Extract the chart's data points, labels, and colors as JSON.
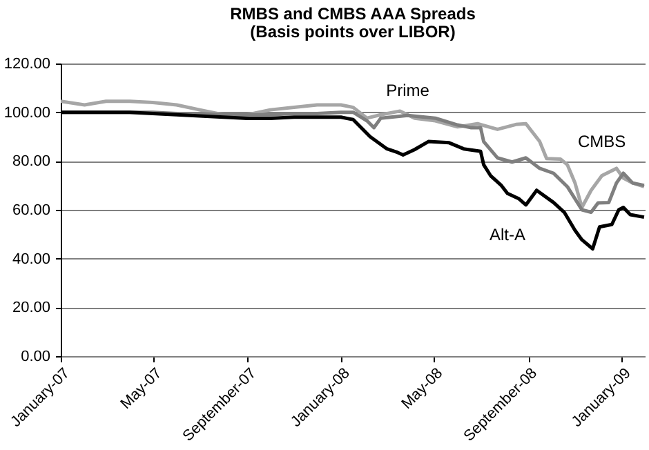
{
  "chart_data": {
    "type": "line",
    "title": "RMBS and CMBS AAA Spreads",
    "subtitle": "(Basis points over LIBOR)",
    "xlim": [
      "2007-01-01",
      "2009-01-31"
    ],
    "xticks": [
      {
        "value": "2007-01-01",
        "label": "January-07"
      },
      {
        "value": "2007-05-01",
        "label": "May-07"
      },
      {
        "value": "2007-09-01",
        "label": "September-07"
      },
      {
        "value": "2008-01-01",
        "label": "January-08"
      },
      {
        "value": "2008-05-01",
        "label": "May-08"
      },
      {
        "value": "2008-09-01",
        "label": "September-08"
      },
      {
        "value": "2009-01-01",
        "label": "January-09"
      }
    ],
    "ylim": [
      0,
      120
    ],
    "yticks": [
      {
        "value": 0,
        "label": "0.00"
      },
      {
        "value": 20,
        "label": "20.00"
      },
      {
        "value": 40,
        "label": "40.00"
      },
      {
        "value": 60,
        "label": "60.00"
      },
      {
        "value": 80,
        "label": "80.00"
      },
      {
        "value": 100,
        "label": "100.00"
      },
      {
        "value": 120,
        "label": "120.00"
      }
    ],
    "grid": "y",
    "series": [
      {
        "name": "CMBS",
        "color": "#a6a6a6",
        "x": [
          "2007-01-01",
          "2007-02-01",
          "2007-03-01",
          "2007-04-01",
          "2007-05-01",
          "2007-06-01",
          "2007-07-01",
          "2007-08-01",
          "2007-09-01",
          "2007-10-01",
          "2007-11-01",
          "2007-12-01",
          "2008-01-01",
          "2008-01-17",
          "2008-02-04",
          "2008-02-22",
          "2008-03-18",
          "2008-04-06",
          "2008-05-03",
          "2008-06-01",
          "2008-06-27",
          "2008-07-23",
          "2008-08-16",
          "2008-08-29",
          "2008-09-16",
          "2008-09-25",
          "2008-10-13",
          "2008-10-22",
          "2008-11-01",
          "2008-11-10",
          "2008-11-22",
          "2008-12-06",
          "2008-12-25",
          "2009-01-03",
          "2009-01-15",
          "2009-01-30"
        ],
        "values": [
          104.5,
          103,
          104.5,
          104.5,
          104,
          103,
          101,
          99,
          99,
          101,
          102,
          103,
          103,
          102,
          97.6,
          99,
          100.5,
          97.6,
          96.5,
          94,
          95.3,
          93,
          95,
          95.3,
          88,
          81,
          80.8,
          78.5,
          71,
          61,
          68,
          74,
          77,
          73,
          71,
          69.5
        ]
      },
      {
        "name": "Prime",
        "color": "#7f7f7f",
        "x": [
          "2007-01-01",
          "2007-02-01",
          "2007-03-01",
          "2007-04-01",
          "2007-05-01",
          "2007-06-01",
          "2007-07-01",
          "2007-08-01",
          "2007-09-01",
          "2007-10-01",
          "2007-11-01",
          "2007-12-01",
          "2008-01-01",
          "2008-01-17",
          "2008-02-04",
          "2008-02-13",
          "2008-02-22",
          "2008-03-28",
          "2008-05-03",
          "2008-06-01",
          "2008-06-18",
          "2008-07-01",
          "2008-07-05",
          "2008-07-23",
          "2008-08-11",
          "2008-08-29",
          "2008-09-16",
          "2008-10-04",
          "2008-10-22",
          "2008-11-10",
          "2008-11-22",
          "2008-12-01",
          "2008-12-15",
          "2008-12-25",
          "2009-01-03",
          "2009-01-15",
          "2009-01-30"
        ],
        "values": [
          100,
          100,
          100,
          100,
          100,
          99.5,
          99.5,
          99,
          99,
          99,
          99.5,
          99.5,
          100,
          100,
          96.5,
          93.7,
          97.6,
          98.7,
          97.6,
          94.8,
          93.7,
          93.7,
          88,
          81.3,
          79.6,
          81.3,
          77,
          75,
          69.5,
          60,
          59,
          62.8,
          63,
          71,
          75,
          71,
          70
        ]
      },
      {
        "name": "Alt-A",
        "color": "#000000",
        "x": [
          "2007-01-01",
          "2007-02-01",
          "2007-03-01",
          "2007-04-01",
          "2007-05-01",
          "2007-06-01",
          "2007-07-01",
          "2007-08-01",
          "2007-09-01",
          "2007-10-01",
          "2007-11-01",
          "2007-12-01",
          "2008-01-01",
          "2008-01-17",
          "2008-02-08",
          "2008-03-01",
          "2008-03-15",
          "2008-03-22",
          "2008-04-06",
          "2008-04-24",
          "2008-05-21",
          "2008-06-09",
          "2008-07-01",
          "2008-07-05",
          "2008-07-14",
          "2008-07-28",
          "2008-08-05",
          "2008-08-20",
          "2008-08-29",
          "2008-09-12",
          "2008-10-04",
          "2008-10-18",
          "2008-11-01",
          "2008-11-10",
          "2008-11-24",
          "2008-12-03",
          "2008-12-19",
          "2008-12-28",
          "2009-01-03",
          "2009-01-12",
          "2009-01-30"
        ],
        "values": [
          100,
          100,
          100,
          100,
          99.5,
          99,
          98.5,
          98,
          97.5,
          97.5,
          98,
          98,
          98,
          97,
          90,
          85,
          83.5,
          82.5,
          84.7,
          88,
          87.5,
          85,
          84,
          78.5,
          74,
          70,
          66.7,
          64.5,
          62,
          68,
          63,
          59,
          51.6,
          47.7,
          44,
          53,
          54,
          60,
          61,
          58,
          57
        ]
      }
    ]
  }
}
